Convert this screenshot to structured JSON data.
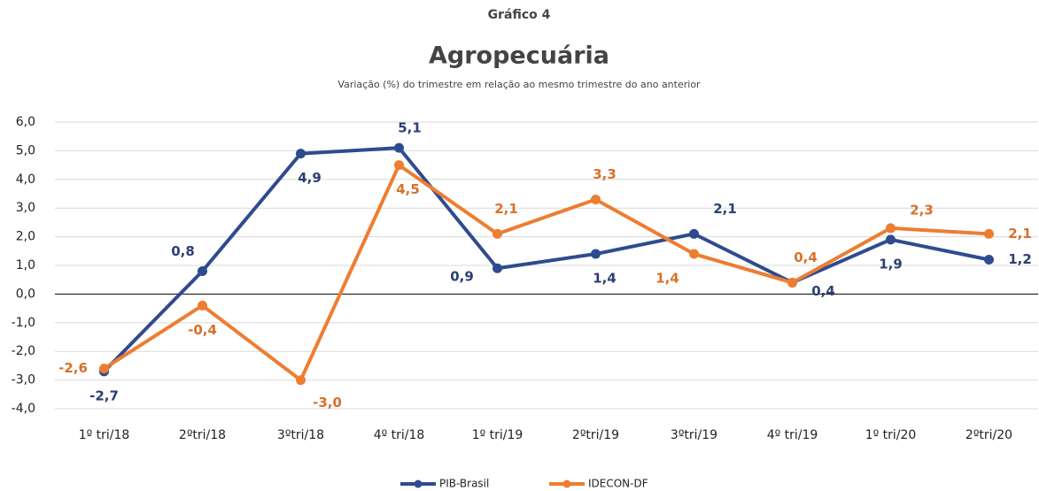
{
  "chart_data": {
    "type": "line",
    "pretitle": "Gráfico 4",
    "title": "Agropecuária",
    "subtitle": "Variação (%) do trimestre em relação ao mesmo trimestre do ano anterior",
    "categories": [
      "1º tri/18",
      "2ºtri/18",
      "3ºtri/18",
      "4º tri/18",
      "1º tri/19",
      "2ºtri/19",
      "3ºtri/19",
      "4º tri/19",
      "1º tri/20",
      "2ºtri/20"
    ],
    "series": [
      {
        "name": "PIB-Brasil",
        "color": "#2f4b8f",
        "values": [
          -2.7,
          0.8,
          4.9,
          5.1,
          0.9,
          1.4,
          2.1,
          0.4,
          1.9,
          1.2
        ],
        "value_labels": [
          "-2,7",
          "0,8",
          "4,9",
          "5,1",
          "0,9",
          "1,4",
          "2,1",
          "0,4",
          "1,9",
          "1,2"
        ]
      },
      {
        "name": "IDECON-DF",
        "color": "#ed7d31",
        "values": [
          -2.6,
          -0.4,
          -3.0,
          4.5,
          2.1,
          3.3,
          1.4,
          0.4,
          2.3,
          2.1
        ],
        "value_labels": [
          "-2,6",
          "-0,4",
          "-3,0",
          "4,5",
          "2,1",
          "3,3",
          "1,4",
          "0,4",
          "2,3",
          "2,1"
        ]
      }
    ],
    "ylim": [
      -4,
      6
    ],
    "yticks": [
      {
        "value": -4,
        "label": "-4,0"
      },
      {
        "value": -3,
        "label": "-3,0"
      },
      {
        "value": -2,
        "label": "-2,0"
      },
      {
        "value": -1,
        "label": "-1,0"
      },
      {
        "value": 0,
        "label": "0,0"
      },
      {
        "value": 1,
        "label": "1,0"
      },
      {
        "value": 2,
        "label": "2,0"
      },
      {
        "value": 3,
        "label": "3,0"
      },
      {
        "value": 4,
        "label": "4,0"
      },
      {
        "value": 5,
        "label": "5,0"
      },
      {
        "value": 6,
        "label": "6,0"
      }
    ],
    "grid": true,
    "legend": "bottom"
  }
}
